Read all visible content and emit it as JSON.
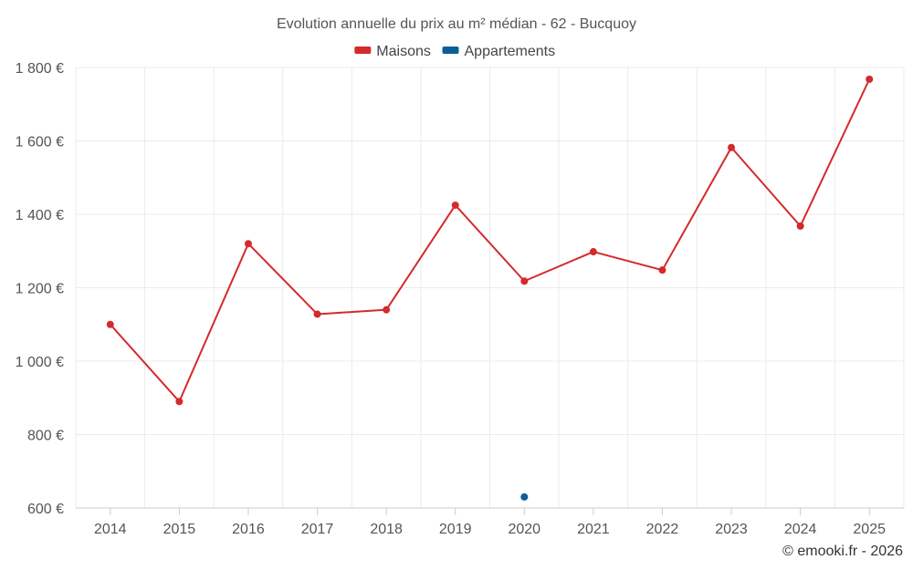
{
  "chart_data": {
    "type": "line",
    "title": "Evolution annuelle du prix au m² médian - 62 - Bucquoy",
    "xlabel": "",
    "ylabel": "",
    "categories": [
      "2014",
      "2015",
      "2016",
      "2017",
      "2018",
      "2019",
      "2020",
      "2021",
      "2022",
      "2023",
      "2024",
      "2025"
    ],
    "series": [
      {
        "name": "Maisons",
        "color": "#d42a2a",
        "values": [
          1100,
          890,
          1320,
          1128,
          1140,
          1425,
          1218,
          1298,
          1248,
          1582,
          1368,
          1768
        ]
      },
      {
        "name": "Appartements",
        "color": "#0b5f98",
        "values": [
          null,
          null,
          null,
          null,
          null,
          null,
          630,
          null,
          null,
          null,
          null,
          null
        ]
      }
    ],
    "ylim": [
      600,
      1800
    ],
    "yticks": [
      600,
      800,
      1000,
      1200,
      1400,
      1600,
      1800
    ],
    "ytick_labels": [
      "600 €",
      "800 €",
      "1 000 €",
      "1 200 €",
      "1 400 €",
      "1 600 €",
      "1 800 €"
    ],
    "grid": true,
    "legend": "top-center"
  },
  "credit": "© emooki.fr - 2026"
}
